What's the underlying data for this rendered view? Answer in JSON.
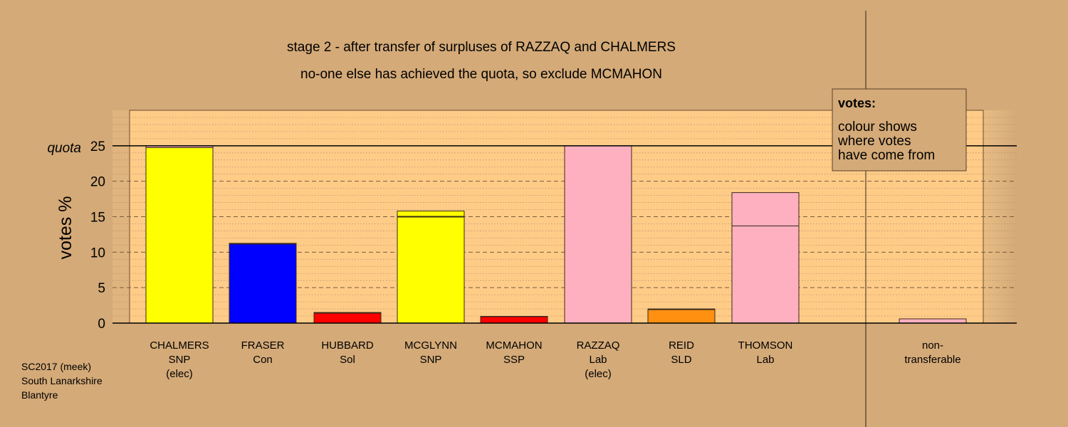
{
  "chart_data": {
    "type": "bar",
    "stacked": true,
    "title": "stage 2 - after transfer of surpluses of RAZZAQ and CHALMERS",
    "subtitle": "no-one else has achieved the quota, so exclude MCMAHON",
    "ylabel": "votes %",
    "ylim": [
      0,
      30
    ],
    "yticks": [
      0,
      5,
      10,
      15,
      20,
      25
    ],
    "grid": true,
    "quota": {
      "label": "quota",
      "value": 25
    },
    "categories": [
      {
        "lines": [
          "CHALMERS",
          "SNP",
          "(elec)"
        ]
      },
      {
        "lines": [
          "FRASER",
          "Con"
        ]
      },
      {
        "lines": [
          "HUBBARD",
          "Sol"
        ]
      },
      {
        "lines": [
          "MCGLYNN",
          "SNP"
        ]
      },
      {
        "lines": [
          "MCMAHON",
          "SSP"
        ]
      },
      {
        "lines": [
          "RAZZAQ",
          "Lab",
          "(elec)"
        ]
      },
      {
        "lines": [
          "REID",
          "SLD"
        ]
      },
      {
        "lines": [
          "THOMSON",
          "Lab"
        ]
      },
      {
        "lines": [
          "non-",
          "transferable"
        ]
      }
    ],
    "bars": [
      {
        "segments": [
          {
            "value": 24.75,
            "color": "#ffff00"
          },
          {
            "value": 0.25,
            "color": "#ffb0c0"
          }
        ]
      },
      {
        "segments": [
          {
            "value": 11.15,
            "color": "#0000ff"
          },
          {
            "value": 0.1,
            "color": "#ffb0c0"
          }
        ]
      },
      {
        "segments": [
          {
            "value": 1.4,
            "color": "#ff0000"
          },
          {
            "value": 0.1,
            "color": "#ffb0c0"
          }
        ]
      },
      {
        "segments": [
          {
            "value": 14.95,
            "color": "#ffff00"
          },
          {
            "value": 0.1,
            "color": "#ffb0c0"
          },
          {
            "value": 0.75,
            "color": "#ffff00"
          }
        ]
      },
      {
        "segments": [
          {
            "value": 0.9,
            "color": "#ff0000"
          },
          {
            "value": 0.05,
            "color": "#ffb0c0"
          }
        ]
      },
      {
        "segments": [
          {
            "value": 25.0,
            "color": "#ffb0c0"
          }
        ]
      },
      {
        "segments": [
          {
            "value": 1.9,
            "color": "#ff9010"
          },
          {
            "value": 0.1,
            "color": "#ffb0c0"
          }
        ]
      },
      {
        "segments": [
          {
            "value": 13.7,
            "color": "#ffb0c0"
          },
          {
            "value": 4.7,
            "color": "#ffb0c0"
          }
        ]
      },
      {
        "segments": [
          {
            "value": 0.6,
            "color": "#ffb0c0"
          }
        ]
      }
    ],
    "legend": {
      "title": "votes:",
      "lines": [
        "colour shows",
        "where votes",
        "have come from"
      ],
      "placement": "top-right"
    }
  },
  "footer": {
    "lines": [
      "SC2017 (meek)",
      "South Lanarkshire",
      "Blantyre"
    ]
  },
  "colors": {
    "background": "#d4aa78",
    "plot": "#ffcc88"
  }
}
